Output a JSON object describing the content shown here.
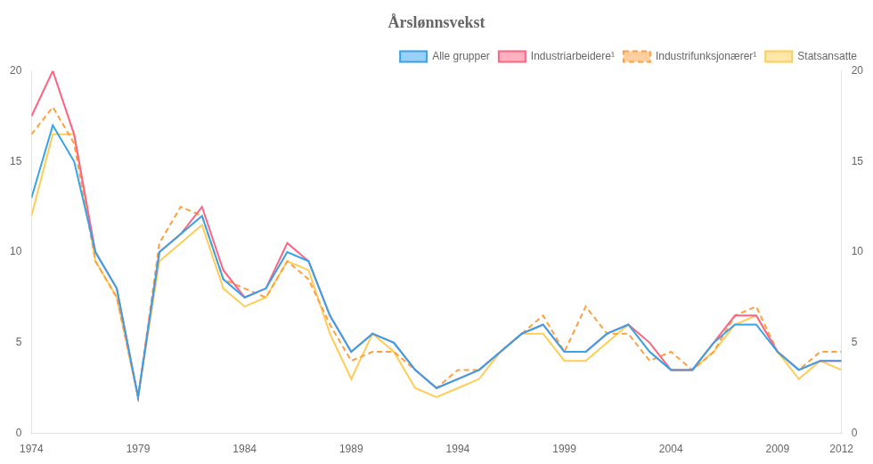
{
  "chart_data": {
    "type": "line",
    "title": "Årslønnsvekst",
    "x": [
      1974,
      1975,
      1976,
      1977,
      1978,
      1979,
      1980,
      1981,
      1982,
      1983,
      1984,
      1985,
      1986,
      1987,
      1988,
      1989,
      1990,
      1991,
      1992,
      1993,
      1994,
      1995,
      1996,
      1997,
      1998,
      1999,
      2000,
      2001,
      2002,
      2003,
      2004,
      2005,
      2006,
      2007,
      2008,
      2009,
      2010,
      2011,
      2012
    ],
    "series": [
      {
        "name": "Alle grupper",
        "line_style": "solid",
        "values": [
          13.0,
          17.0,
          15.0,
          10.0,
          8.0,
          2.0,
          10.0,
          11.0,
          12.0,
          8.5,
          7.5,
          8.0,
          10.0,
          9.5,
          6.5,
          4.5,
          5.5,
          5.0,
          3.5,
          2.5,
          3.0,
          3.5,
          4.5,
          5.5,
          6.0,
          4.5,
          4.5,
          5.5,
          6.0,
          4.5,
          3.5,
          3.5,
          5.0,
          6.0,
          6.0,
          4.5,
          3.5,
          4.0,
          4.0
        ]
      },
      {
        "name": "Industriarbeidere¹",
        "line_style": "solid",
        "values": [
          17.5,
          20.0,
          16.5,
          10.0,
          8.0,
          2.0,
          10.0,
          11.0,
          12.5,
          9.0,
          7.5,
          8.0,
          10.5,
          9.5,
          6.5,
          4.5,
          5.5,
          5.0,
          3.5,
          2.5,
          3.0,
          3.5,
          4.5,
          5.5,
          6.0,
          4.5,
          4.5,
          5.5,
          6.0,
          5.0,
          3.5,
          3.5,
          5.0,
          6.5,
          6.5,
          4.5,
          3.5,
          4.0,
          4.0
        ]
      },
      {
        "name": "Industrifunksjonærer¹",
        "line_style": "dashed",
        "values": [
          16.5,
          18.0,
          16.0,
          9.5,
          7.5,
          2.0,
          10.5,
          12.5,
          12.0,
          8.5,
          8.0,
          7.5,
          9.5,
          8.5,
          6.0,
          4.0,
          4.5,
          4.5,
          3.5,
          2.5,
          3.5,
          3.5,
          4.5,
          5.5,
          6.5,
          4.5,
          7.0,
          5.5,
          5.5,
          4.0,
          4.5,
          3.5,
          4.5,
          6.5,
          7.0,
          4.5,
          3.5,
          4.5,
          4.5
        ]
      },
      {
        "name": "Statsansatte",
        "line_style": "solid",
        "values": [
          12.0,
          16.5,
          16.5,
          9.5,
          7.5,
          2.0,
          9.5,
          10.5,
          11.5,
          8.0,
          7.0,
          7.5,
          9.5,
          9.0,
          5.5,
          3.0,
          5.5,
          4.5,
          2.5,
          2.0,
          2.5,
          3.0,
          4.5,
          5.5,
          5.5,
          4.0,
          4.0,
          5.0,
          6.0,
          4.5,
          3.5,
          3.5,
          4.5,
          6.0,
          6.5,
          4.5,
          3.0,
          4.0,
          3.5
        ]
      }
    ],
    "xlim": [
      1974,
      2012
    ],
    "xticks": [
      1974,
      1979,
      1984,
      1989,
      1994,
      1999,
      2004,
      2009,
      2012
    ],
    "ylim": [
      0,
      20
    ],
    "yticks": [
      0,
      5,
      10,
      15,
      20
    ],
    "y2lim": [
      0,
      20
    ],
    "y2ticks": [
      0,
      5,
      10,
      15,
      20
    ],
    "grid": false,
    "legend": "upper right"
  }
}
